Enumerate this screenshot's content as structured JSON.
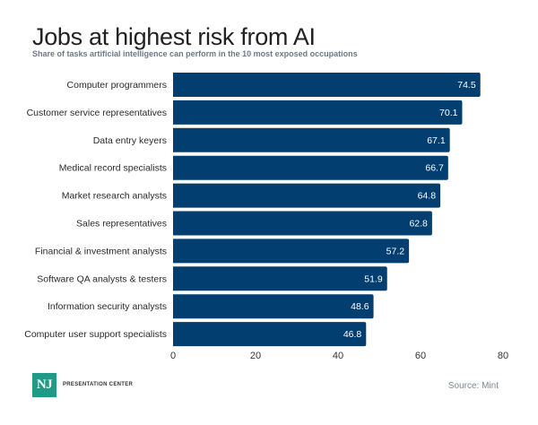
{
  "header": {
    "title": "Jobs at highest risk from AI",
    "subtitle": "Share of tasks artificial intelligence can perform in the 10 most exposed occupations"
  },
  "footer": {
    "logo_mark": "NJ",
    "logo_text": "PRESENTATION CENTER",
    "source": "Source: Mint"
  },
  "colors": {
    "bar": "#023e70",
    "logo": "#1f9a86"
  },
  "chart_data": {
    "type": "bar",
    "orientation": "horizontal",
    "title": "Jobs at highest risk from AI",
    "subtitle": "Share of tasks artificial intelligence can perform in the 10 most exposed occupations",
    "xlabel": "",
    "ylabel": "",
    "categories": [
      "Computer programmers",
      "Customer service representatives",
      "Data entry keyers",
      "Medical record specialists",
      "Market research analysts",
      "Sales representatives",
      "Financial & investment analysts",
      "Software QA analysts & testers",
      "Information security analysts",
      "Computer user support specialists"
    ],
    "values": [
      74.5,
      70.1,
      67.1,
      66.7,
      64.8,
      62.8,
      57.2,
      51.9,
      48.6,
      46.8
    ],
    "value_labels": [
      "74.5",
      "70.1",
      "67.1",
      "66.7",
      "64.8",
      "62.8",
      "57.2",
      "51.9",
      "48.6",
      "46.8"
    ],
    "xlim": [
      0,
      80
    ],
    "xticks": [
      0,
      20,
      40,
      60,
      80
    ],
    "grid": false,
    "legend": "none"
  }
}
